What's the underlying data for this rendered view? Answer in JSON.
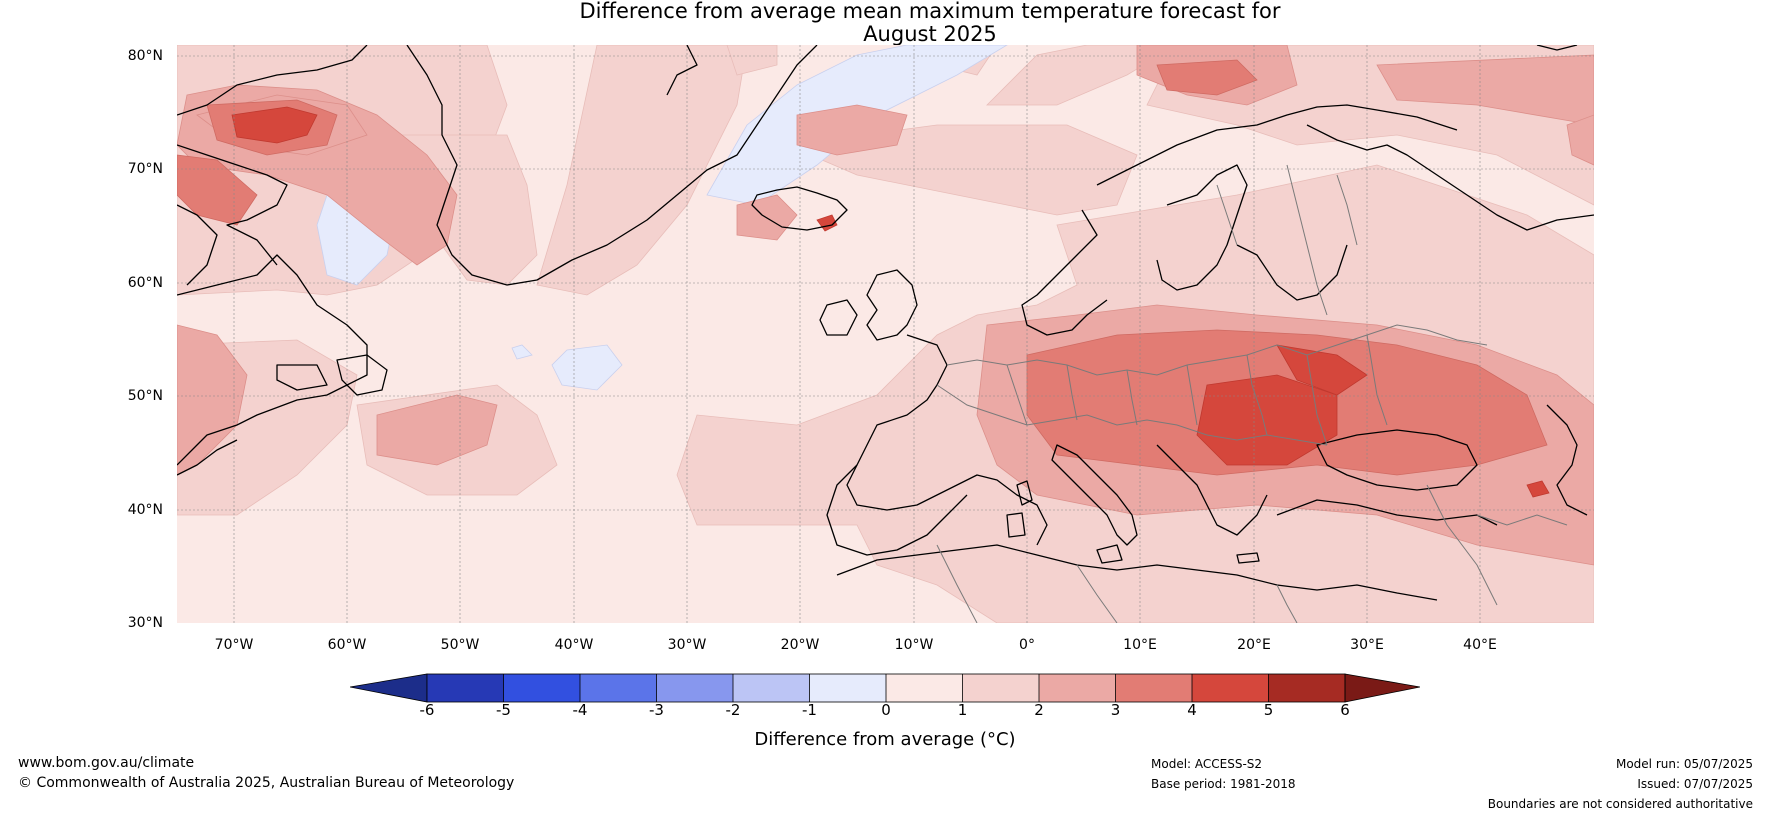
{
  "title": {
    "line1": "Difference from average mean maximum temperature forecast for",
    "line2": "August 2025"
  },
  "map": {
    "lat_ticks": [
      "80°N",
      "70°N",
      "60°N",
      "50°N",
      "40°N",
      "30°N"
    ],
    "lon_ticks": [
      "70°W",
      "60°W",
      "50°W",
      "40°W",
      "30°W",
      "20°W",
      "10°W",
      "0°",
      "10°E",
      "20°E",
      "30°E",
      "40°E"
    ],
    "extent": {
      "lon_min": -75,
      "lon_max": 50,
      "lat_min": 30,
      "lat_max": 81
    }
  },
  "colorbar": {
    "ticks": [
      "-6",
      "-5",
      "-4",
      "-3",
      "-2",
      "-1",
      "0",
      "1",
      "2",
      "3",
      "4",
      "5",
      "6"
    ],
    "colors": {
      "below_-6": "#1c2d8a",
      "-6_-5": "#2639b5",
      "-5_-4": "#3250e0",
      "-4_-3": "#5b74e9",
      "-3_-2": "#8797ee",
      "-2_-1": "#bcc5f5",
      "-1_0": "#e6ebfc",
      "0_1": "#fbe9e6",
      "1_2": "#f4d2cf",
      "2_3": "#eba9a5",
      "3_4": "#e27c74",
      "4_5": "#d5473c",
      "5_6": "#a62b23",
      "above_6": "#7a1a16"
    },
    "label": "Difference from average (°C)"
  },
  "footer": {
    "website": "www.bom.gov.au/climate",
    "copyright": "© Commonwealth of Australia 2025, Australian Bureau of Meteorology",
    "model": "Model: ACCESS-S2",
    "base_period": "Base period: 1981-2018",
    "model_run": "Model run: 05/07/2025",
    "issued": "Issued: 07/07/2025",
    "disclaimer": "Boundaries are not considered authoritative"
  }
}
